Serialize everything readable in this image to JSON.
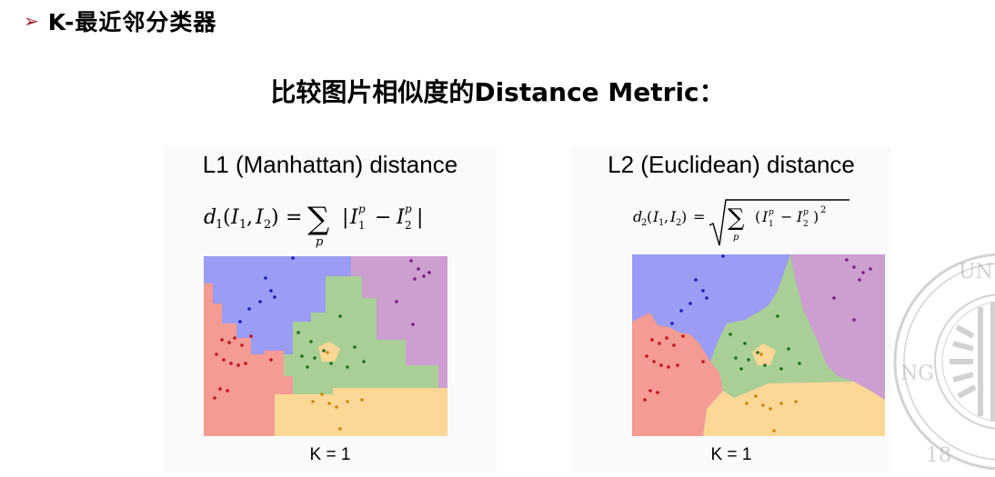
{
  "header": {
    "bullet": "➢",
    "title": "K-最近邻分类器"
  },
  "slide_title": "比较图片相似度的Distance Metric：",
  "panels": [
    {
      "title": "L1 (Manhattan) distance",
      "caption": "K = 1"
    },
    {
      "title": "L2 (Euclidean) distance",
      "caption": "K = 1"
    }
  ],
  "watermark": {
    "letters": "UN",
    "digits": "18",
    "side": "NG"
  },
  "colors": {
    "blue": "#9b9cf3",
    "green": "#a9cf96",
    "purple": "#cd9ed0",
    "red": "#f49b93",
    "orange": "#fdd796",
    "bullet": "#9a1b22"
  }
}
